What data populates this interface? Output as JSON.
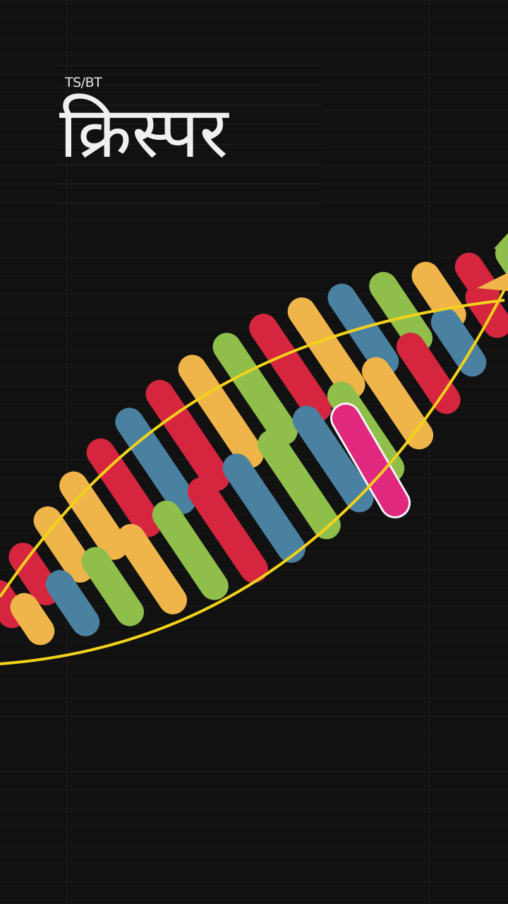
{
  "header": {
    "brand": "TS/BT",
    "title": "क्रिस्पर"
  },
  "colors": {
    "background": "#111111",
    "text": "#f0f0f0",
    "red": "#d6263f",
    "yellow": "#f0b54a",
    "green": "#8fbf4a",
    "blue": "#4a80a0",
    "magenta": "#e0287f",
    "strand": "#f2d21a"
  },
  "helix": {
    "upper_row_colors": [
      "red",
      "red",
      "yellow",
      "yellow",
      "red",
      "blue",
      "red",
      "yellow",
      "green",
      "red",
      "yellow",
      "blue",
      "green",
      "yellow",
      "red",
      "green"
    ],
    "lower_row_colors": [
      "yellow",
      "blue",
      "green",
      "yellow",
      "green",
      "red",
      "blue",
      "green",
      "blue",
      "green",
      "yellow",
      "red",
      "blue",
      "red"
    ],
    "highlighted_gene": "magenta"
  }
}
